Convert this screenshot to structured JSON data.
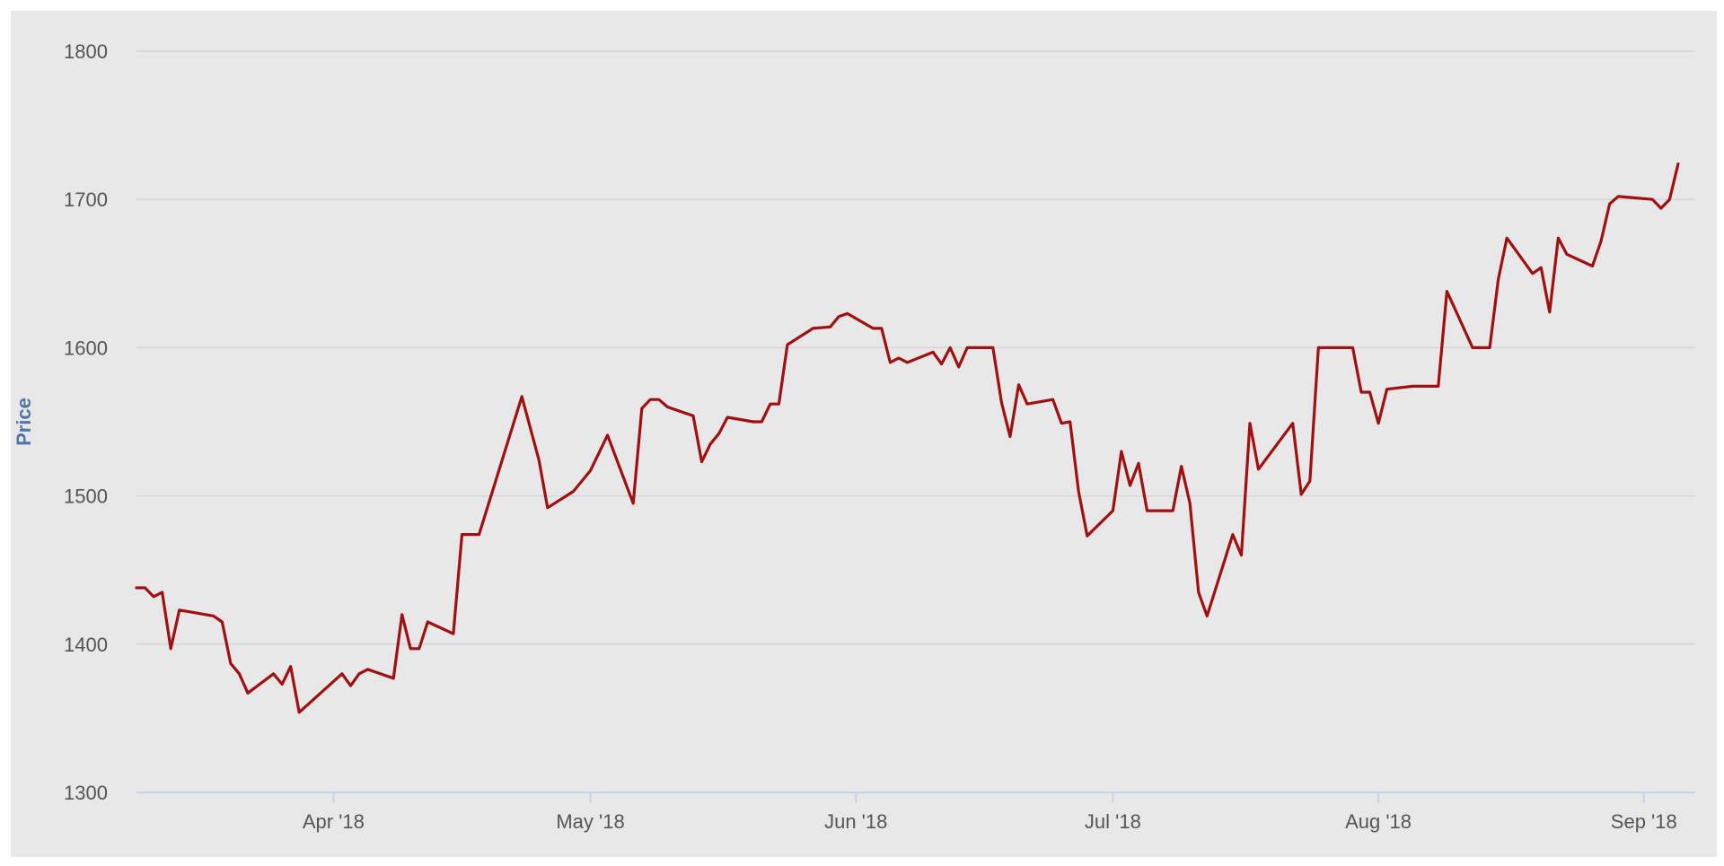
{
  "chart_data": {
    "type": "line",
    "title": "",
    "xlabel": "",
    "ylabel": "Price",
    "ylim": [
      1300,
      1800
    ],
    "yticks": [
      1300,
      1400,
      1500,
      1600,
      1700,
      1800
    ],
    "xlim": [
      "2018-03-09",
      "2018-09-07"
    ],
    "xticks": [
      {
        "date": "2018-04-01",
        "label": "Apr '18"
      },
      {
        "date": "2018-05-01",
        "label": "May '18"
      },
      {
        "date": "2018-06-01",
        "label": "Jun '18"
      },
      {
        "date": "2018-07-01",
        "label": "Jul '18"
      },
      {
        "date": "2018-08-01",
        "label": "Aug '18"
      },
      {
        "date": "2018-09-01",
        "label": "Sep '18"
      }
    ],
    "grid": true,
    "legend": "none",
    "line_color": "#a01010",
    "series": [
      {
        "points": [
          [
            "2018-03-09",
            1438
          ],
          [
            "2018-03-10",
            1438
          ],
          [
            "2018-03-11",
            1432
          ],
          [
            "2018-03-12",
            1435
          ],
          [
            "2018-03-13",
            1397
          ],
          [
            "2018-03-14",
            1423
          ],
          [
            "2018-03-16",
            1421
          ],
          [
            "2018-03-18",
            1419
          ],
          [
            "2018-03-19",
            1415
          ],
          [
            "2018-03-20",
            1387
          ],
          [
            "2018-03-21",
            1380
          ],
          [
            "2018-03-22",
            1367
          ],
          [
            "2018-03-25",
            1380
          ],
          [
            "2018-03-26",
            1373
          ],
          [
            "2018-03-27",
            1385
          ],
          [
            "2018-03-28",
            1354
          ],
          [
            "2018-04-02",
            1380
          ],
          [
            "2018-04-03",
            1372
          ],
          [
            "2018-04-04",
            1380
          ],
          [
            "2018-04-05",
            1383
          ],
          [
            "2018-04-08",
            1377
          ],
          [
            "2018-04-09",
            1420
          ],
          [
            "2018-04-10",
            1397
          ],
          [
            "2018-04-11",
            1397
          ],
          [
            "2018-04-12",
            1415
          ],
          [
            "2018-04-15",
            1407
          ],
          [
            "2018-04-16",
            1474
          ],
          [
            "2018-04-18",
            1474
          ],
          [
            "2018-04-23",
            1567
          ],
          [
            "2018-04-25",
            1524
          ],
          [
            "2018-04-26",
            1492
          ],
          [
            "2018-04-29",
            1503
          ],
          [
            "2018-05-01",
            1517
          ],
          [
            "2018-05-03",
            1541
          ],
          [
            "2018-05-06",
            1495
          ],
          [
            "2018-05-07",
            1559
          ],
          [
            "2018-05-08",
            1565
          ],
          [
            "2018-05-09",
            1565
          ],
          [
            "2018-05-10",
            1560
          ],
          [
            "2018-05-13",
            1554
          ],
          [
            "2018-05-14",
            1523
          ],
          [
            "2018-05-15",
            1535
          ],
          [
            "2018-05-16",
            1542
          ],
          [
            "2018-05-17",
            1553
          ],
          [
            "2018-05-20",
            1550
          ],
          [
            "2018-05-21",
            1550
          ],
          [
            "2018-05-22",
            1562
          ],
          [
            "2018-05-23",
            1562
          ],
          [
            "2018-05-24",
            1602
          ],
          [
            "2018-05-27",
            1613
          ],
          [
            "2018-05-29",
            1614
          ],
          [
            "2018-05-30",
            1621
          ],
          [
            "2018-05-31",
            1623
          ],
          [
            "2018-06-03",
            1613
          ],
          [
            "2018-06-04",
            1613
          ],
          [
            "2018-06-05",
            1590
          ],
          [
            "2018-06-06",
            1593
          ],
          [
            "2018-06-07",
            1590
          ],
          [
            "2018-06-10",
            1597
          ],
          [
            "2018-06-11",
            1589
          ],
          [
            "2018-06-12",
            1600
          ],
          [
            "2018-06-13",
            1587
          ],
          [
            "2018-06-14",
            1600
          ],
          [
            "2018-06-17",
            1600
          ],
          [
            "2018-06-18",
            1563
          ],
          [
            "2018-06-19",
            1540
          ],
          [
            "2018-06-20",
            1575
          ],
          [
            "2018-06-21",
            1562
          ],
          [
            "2018-06-24",
            1565
          ],
          [
            "2018-06-25",
            1549
          ],
          [
            "2018-06-26",
            1550
          ],
          [
            "2018-06-27",
            1503
          ],
          [
            "2018-06-28",
            1473
          ],
          [
            "2018-07-01",
            1490
          ],
          [
            "2018-07-02",
            1530
          ],
          [
            "2018-07-03",
            1507
          ],
          [
            "2018-07-04",
            1522
          ],
          [
            "2018-07-05",
            1490
          ],
          [
            "2018-07-08",
            1490
          ],
          [
            "2018-07-09",
            1520
          ],
          [
            "2018-07-10",
            1495
          ],
          [
            "2018-07-11",
            1435
          ],
          [
            "2018-07-12",
            1419
          ],
          [
            "2018-07-15",
            1474
          ],
          [
            "2018-07-16",
            1460
          ],
          [
            "2018-07-17",
            1549
          ],
          [
            "2018-07-18",
            1518
          ],
          [
            "2018-07-22",
            1549
          ],
          [
            "2018-07-23",
            1501
          ],
          [
            "2018-07-24",
            1510
          ],
          [
            "2018-07-25",
            1600
          ],
          [
            "2018-07-29",
            1600
          ],
          [
            "2018-07-30",
            1570
          ],
          [
            "2018-07-31",
            1570
          ],
          [
            "2018-08-01",
            1549
          ],
          [
            "2018-08-02",
            1572
          ],
          [
            "2018-08-05",
            1574
          ],
          [
            "2018-08-08",
            1574
          ],
          [
            "2018-08-09",
            1638
          ],
          [
            "2018-08-12",
            1600
          ],
          [
            "2018-08-14",
            1600
          ],
          [
            "2018-08-15",
            1646
          ],
          [
            "2018-08-16",
            1674
          ],
          [
            "2018-08-19",
            1650
          ],
          [
            "2018-08-20",
            1654
          ],
          [
            "2018-08-21",
            1624
          ],
          [
            "2018-08-22",
            1674
          ],
          [
            "2018-08-23",
            1663
          ],
          [
            "2018-08-26",
            1655
          ],
          [
            "2018-08-27",
            1672
          ],
          [
            "2018-08-28",
            1697
          ],
          [
            "2018-08-29",
            1702
          ],
          [
            "2018-09-02",
            1700
          ],
          [
            "2018-09-03",
            1694
          ],
          [
            "2018-09-04",
            1700
          ],
          [
            "2018-09-05",
            1724
          ]
        ]
      }
    ]
  }
}
